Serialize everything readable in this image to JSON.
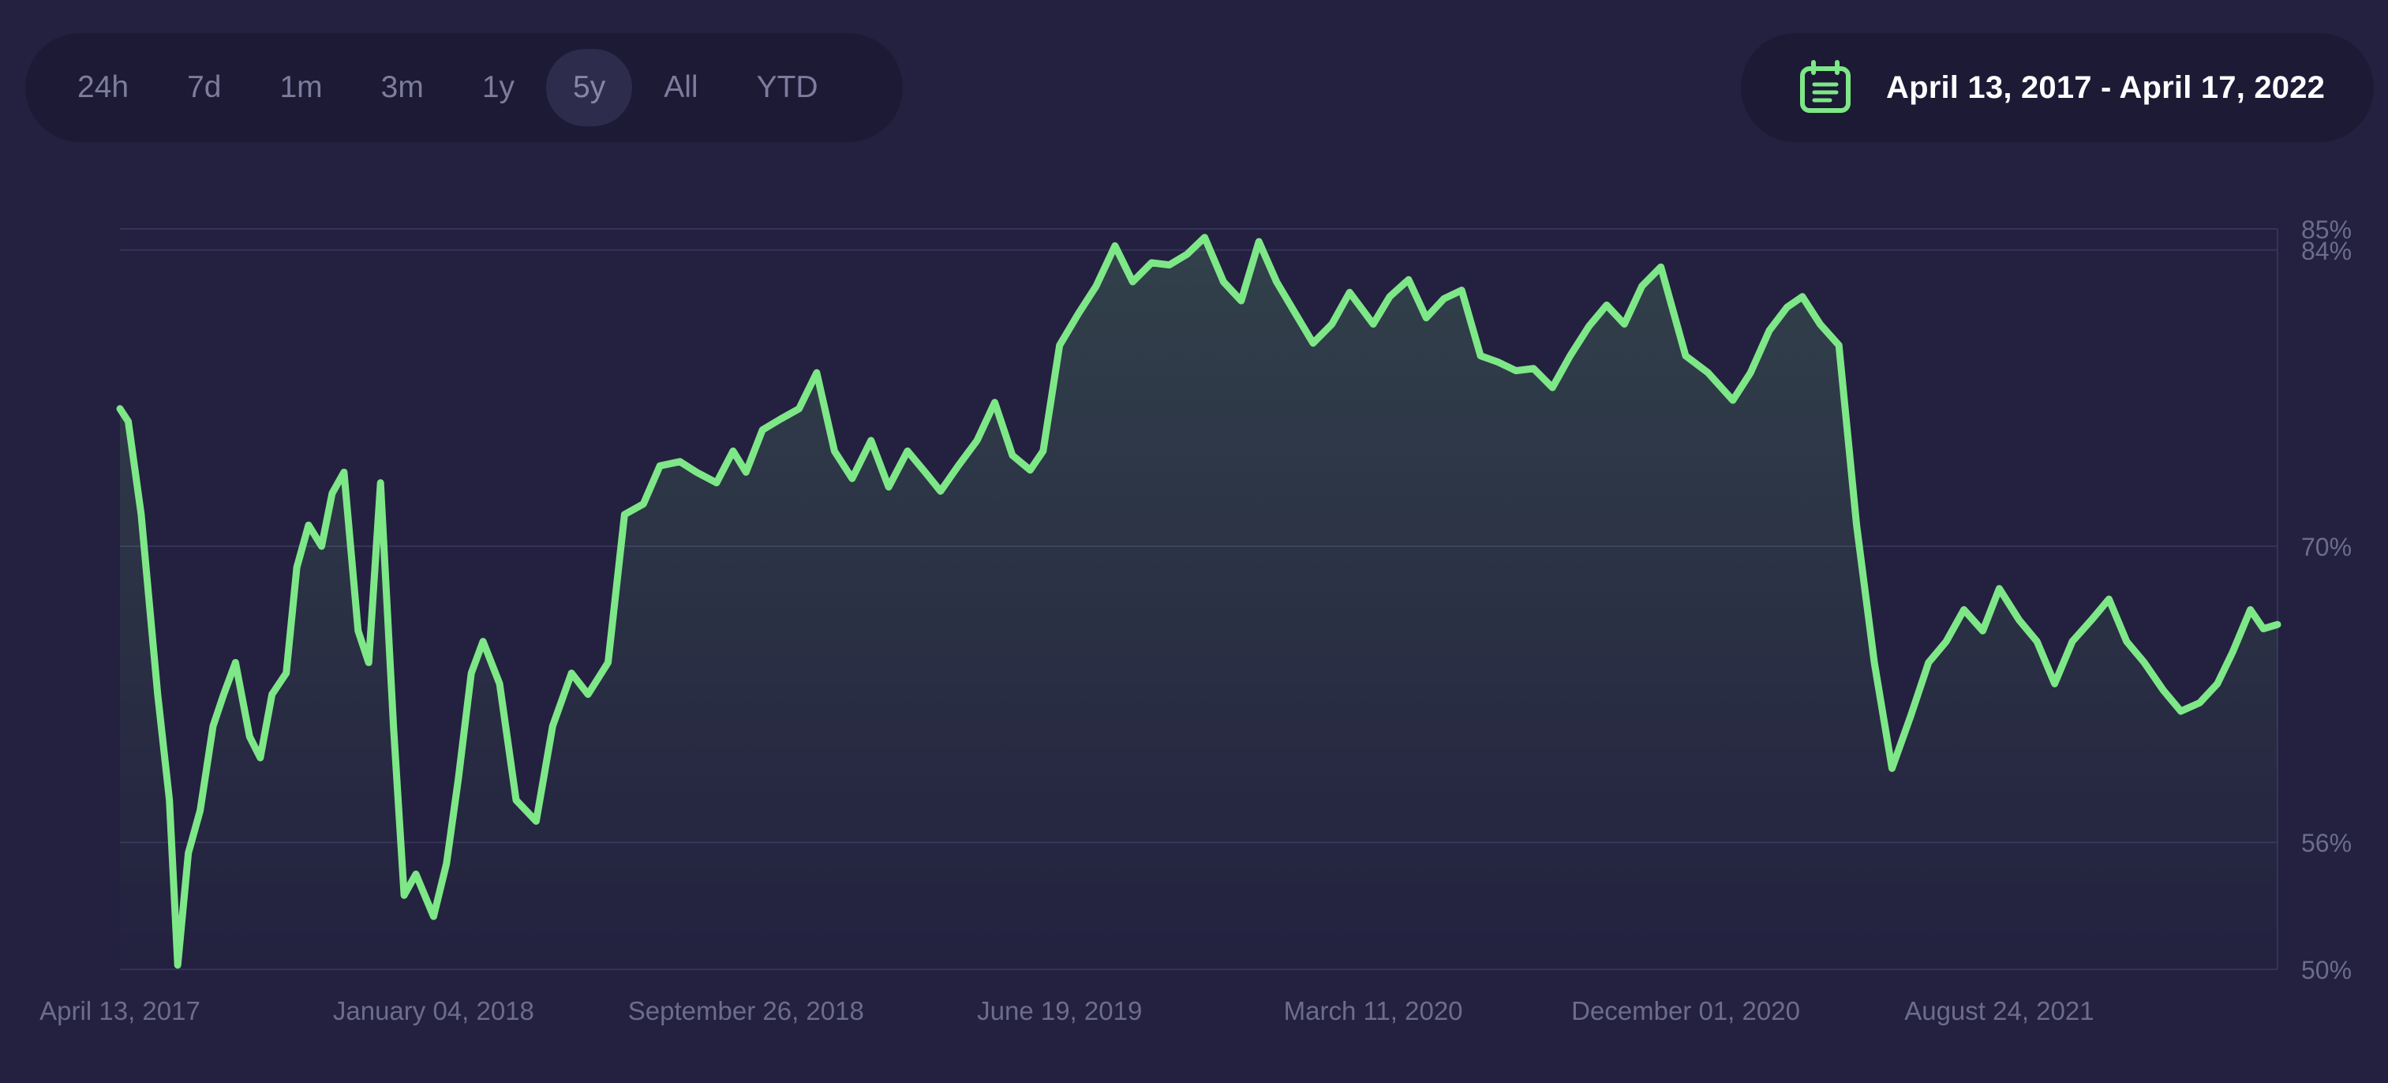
{
  "range_selector": {
    "options": [
      "24h",
      "7d",
      "1m",
      "3m",
      "1y",
      "5y",
      "All",
      "YTD"
    ],
    "selected": "5y"
  },
  "date_range": {
    "label": "April 13, 2017 - April 17, 2022",
    "icon": "calendar-icon"
  },
  "colors": {
    "background": "#23213f",
    "line": "#7ee787",
    "grid": "#35335a",
    "accent_icon": "#7ee787"
  },
  "chart_data": {
    "type": "area",
    "title": "",
    "xlabel": "",
    "ylabel": "",
    "y_tick_labels": [
      "85%",
      "84%",
      "70%",
      "56%",
      "50%"
    ],
    "y_ticks": [
      85,
      84,
      70,
      56,
      50
    ],
    "ylim": [
      50,
      85
    ],
    "xlim": [
      "2017-04-13",
      "2022-04-17"
    ],
    "x_tick_labels": [
      "April 13, 2017",
      "January 04, 2018",
      "September 26, 2018",
      "June 19, 2019",
      "March 11, 2020",
      "December 01, 2020",
      "August 24, 2021"
    ],
    "x_ticks": [
      "2017-04-13",
      "2018-01-04",
      "2018-09-26",
      "2019-06-19",
      "2020-03-11",
      "2020-12-01",
      "2021-08-24"
    ],
    "grid": true,
    "series": [
      {
        "x": [
          "2017-04-13",
          "2017-04-20",
          "2017-05-01",
          "2017-05-15",
          "2017-05-25",
          "2017-06-01",
          "2017-06-10",
          "2017-06-20",
          "2017-07-01",
          "2017-07-10",
          "2017-07-20",
          "2017-08-01",
          "2017-08-10",
          "2017-08-20",
          "2017-09-01",
          "2017-09-10",
          "2017-09-20",
          "2017-10-01",
          "2017-10-10",
          "2017-10-20",
          "2017-11-01",
          "2017-11-10",
          "2017-11-20",
          "2017-12-01",
          "2017-12-10",
          "2017-12-20",
          "2018-01-04",
          "2018-01-15",
          "2018-01-25",
          "2018-02-05",
          "2018-02-15",
          "2018-03-01",
          "2018-03-15",
          "2018-04-01",
          "2018-04-15",
          "2018-05-01",
          "2018-05-15",
          "2018-06-01",
          "2018-06-15",
          "2018-07-01",
          "2018-07-15",
          "2018-08-01",
          "2018-08-15",
          "2018-09-01",
          "2018-09-15",
          "2018-09-26",
          "2018-10-10",
          "2018-10-25",
          "2018-11-10",
          "2018-11-25",
          "2018-12-10",
          "2018-12-25",
          "2019-01-10",
          "2019-01-25",
          "2019-02-10",
          "2019-02-25",
          "2019-03-10",
          "2019-03-25",
          "2019-04-10",
          "2019-04-25",
          "2019-05-10",
          "2019-05-25",
          "2019-06-05",
          "2019-06-19",
          "2019-07-05",
          "2019-07-20",
          "2019-08-05",
          "2019-08-20",
          "2019-09-05",
          "2019-09-20",
          "2019-10-05",
          "2019-10-20",
          "2019-11-05",
          "2019-11-20",
          "2019-12-05",
          "2019-12-20",
          "2020-01-05",
          "2020-01-20",
          "2020-02-05",
          "2020-02-20",
          "2020-03-11",
          "2020-03-25",
          "2020-04-10",
          "2020-04-25",
          "2020-05-10",
          "2020-05-25",
          "2020-06-10",
          "2020-06-25",
          "2020-07-10",
          "2020-07-25",
          "2020-08-10",
          "2020-08-25",
          "2020-09-10",
          "2020-09-25",
          "2020-10-10",
          "2020-10-25",
          "2020-11-10",
          "2020-12-01",
          "2020-12-20",
          "2021-01-10",
          "2021-01-25",
          "2021-02-10",
          "2021-02-25",
          "2021-03-10",
          "2021-03-25",
          "2021-04-10",
          "2021-04-25",
          "2021-05-10",
          "2021-05-25",
          "2021-06-10",
          "2021-06-25",
          "2021-07-10",
          "2021-07-25",
          "2021-08-10",
          "2021-08-24",
          "2021-09-10",
          "2021-09-25",
          "2021-10-10",
          "2021-10-25",
          "2021-11-10",
          "2021-11-25",
          "2021-12-10",
          "2021-12-25",
          "2022-01-10",
          "2022-01-25",
          "2022-02-10",
          "2022-02-25",
          "2022-03-10",
          "2022-03-25",
          "2022-04-05",
          "2022-04-17"
        ],
        "values": [
          76.5,
          75.9,
          71.5,
          63.0,
          58.0,
          50.2,
          55.5,
          57.5,
          61.5,
          63.0,
          64.5,
          61.0,
          60.0,
          63.0,
          64.0,
          69.0,
          71.0,
          70.0,
          72.5,
          73.5,
          66.0,
          64.5,
          73.0,
          61.5,
          53.5,
          54.5,
          52.5,
          55.0,
          59.0,
          64.0,
          65.5,
          63.5,
          58.0,
          57.0,
          61.5,
          64.0,
          63.0,
          64.5,
          71.5,
          72.0,
          73.8,
          74.0,
          73.5,
          73.0,
          74.5,
          73.5,
          75.5,
          76.0,
          76.5,
          78.2,
          74.5,
          73.2,
          75.0,
          72.8,
          74.5,
          73.5,
          72.6,
          73.8,
          75.0,
          76.8,
          74.3,
          73.6,
          74.5,
          79.5,
          81.0,
          82.3,
          84.2,
          82.5,
          83.4,
          83.3,
          83.8,
          84.6,
          82.5,
          81.6,
          84.4,
          82.5,
          81.0,
          79.6,
          80.5,
          82.0,
          80.5,
          81.8,
          82.6,
          80.8,
          81.7,
          82.1,
          79.0,
          78.7,
          78.3,
          78.4,
          77.5,
          79.0,
          80.4,
          81.4,
          80.5,
          82.3,
          83.2,
          79.0,
          78.2,
          76.9,
          78.2,
          80.2,
          81.3,
          81.8,
          80.5,
          79.5,
          71.0,
          64.5,
          59.5,
          62.0,
          64.5,
          65.5,
          67.0,
          66.0,
          68.0,
          66.5,
          65.5,
          63.5,
          65.5,
          66.5,
          67.5,
          65.5,
          64.5,
          63.2,
          62.2,
          62.6,
          63.5,
          65.0,
          67.0,
          66.1,
          66.3
        ]
      }
    ]
  }
}
